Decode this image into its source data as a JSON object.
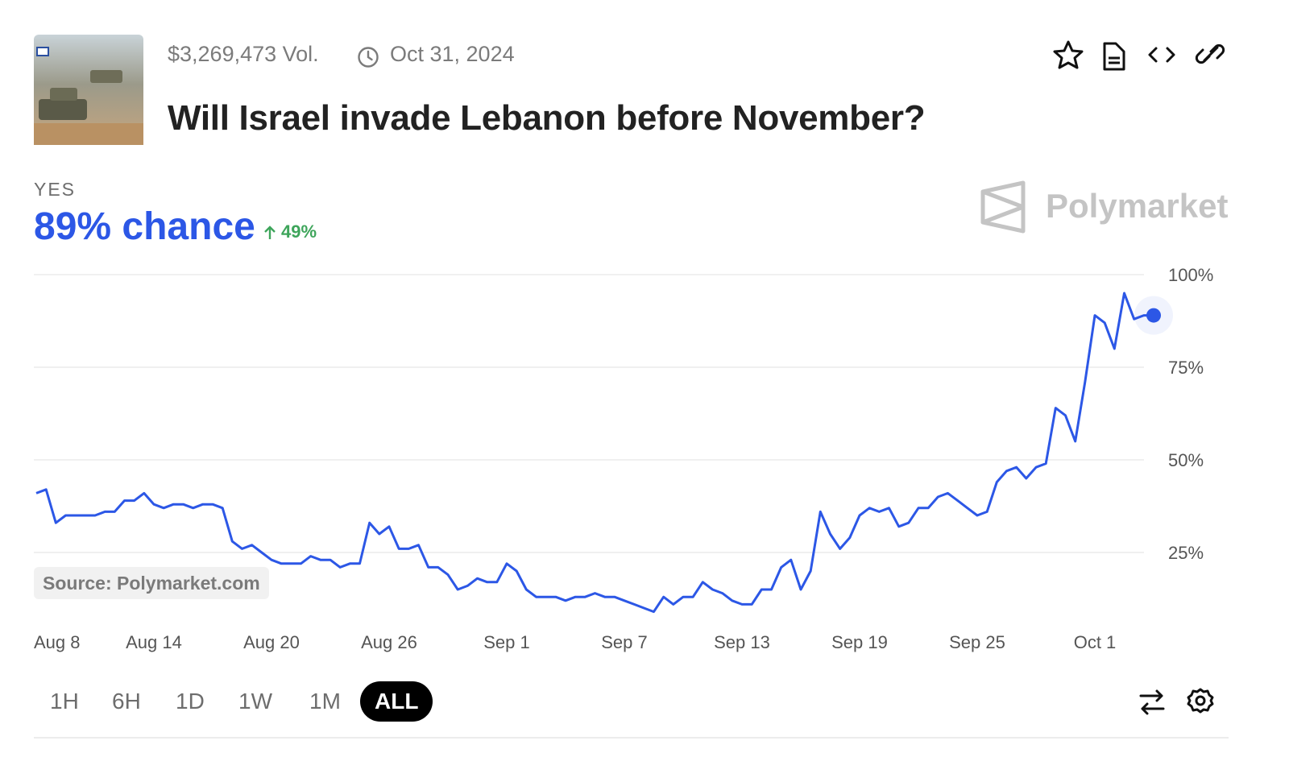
{
  "header": {
    "volume": "$3,269,473 Vol.",
    "end_date": "Oct 31, 2024",
    "title": "Will Israel invade Lebanon before November?"
  },
  "outcome": {
    "label": "YES",
    "chance": "89% chance",
    "change": "49%"
  },
  "brand": "Polymarket",
  "source": "Source: Polymarket.com",
  "ranges": [
    "1H",
    "6H",
    "1D",
    "1W",
    "1M",
    "ALL"
  ],
  "chart_data": {
    "type": "line",
    "x": [
      0,
      0.5,
      1,
      1.5,
      2,
      2.5,
      3,
      3.5,
      4,
      4.5,
      5,
      5.5,
      6,
      6.5,
      7,
      7.5,
      8,
      8.5,
      9,
      9.5,
      10,
      10.5,
      11,
      11.5,
      12,
      12.5,
      13,
      13.5,
      14,
      14.5,
      15,
      15.5,
      16,
      16.5,
      17,
      17.5,
      18,
      18.5,
      19,
      19.5,
      20,
      20.5,
      21,
      21.5,
      22,
      22.5,
      23,
      23.5,
      24,
      24.5,
      25,
      25.5,
      26,
      26.5,
      27,
      27.5,
      28,
      28.5,
      29,
      29.5,
      30,
      30.5,
      31,
      31.5,
      32,
      32.5,
      33,
      33.5,
      34,
      34.5,
      35,
      35.5,
      36,
      36.5,
      37,
      37.5,
      38,
      38.5,
      39,
      39.5,
      40,
      40.5,
      41,
      41.5,
      42,
      42.5,
      43,
      43.5,
      44,
      44.5,
      45,
      45.5,
      46,
      46.5,
      47,
      47.5,
      48,
      48.5,
      49,
      49.5,
      50,
      50.5,
      51,
      51.5,
      52,
      52.5,
      53,
      53.5,
      54,
      54.5,
      55,
      55.5,
      56,
      56.5,
      57
    ],
    "series": [
      {
        "name": "YES",
        "color": "#2c57e6",
        "values": [
          41,
          42,
          33,
          35,
          35,
          35,
          35,
          36,
          36,
          39,
          39,
          41,
          38,
          37,
          38,
          38,
          37,
          38,
          38,
          37,
          28,
          26,
          27,
          25,
          23,
          22,
          22,
          22,
          24,
          23,
          23,
          21,
          22,
          22,
          33,
          30,
          32,
          26,
          26,
          27,
          21,
          21,
          19,
          15,
          16,
          18,
          17,
          17,
          22,
          20,
          15,
          13,
          13,
          13,
          12,
          13,
          13,
          14,
          13,
          13,
          12,
          11,
          10,
          9,
          13,
          11,
          13,
          13,
          17,
          15,
          14,
          12,
          11,
          11,
          15,
          15,
          21,
          23,
          15,
          20,
          36,
          30,
          26,
          29,
          35,
          37,
          36,
          37,
          32,
          33,
          37,
          37,
          40,
          41,
          39,
          37,
          35,
          36,
          44,
          47,
          48,
          45,
          48,
          49,
          64,
          62,
          55,
          71,
          89,
          87,
          80,
          95,
          88,
          89,
          89
        ]
      }
    ],
    "xlim": [
      0,
      57
    ],
    "xticks": [
      {
        "value": 0,
        "label": "Aug 8"
      },
      {
        "value": 6,
        "label": "Aug 14"
      },
      {
        "value": 12,
        "label": "Aug 20"
      },
      {
        "value": 18,
        "label": "Aug 26"
      },
      {
        "value": 24,
        "label": "Sep 1"
      },
      {
        "value": 30,
        "label": "Sep 7"
      },
      {
        "value": 36,
        "label": "Sep 13"
      },
      {
        "value": 42,
        "label": "Sep 19"
      },
      {
        "value": 48,
        "label": "Sep 25"
      },
      {
        "value": 54,
        "label": "Oct 1"
      }
    ],
    "ylim": [
      0,
      100
    ],
    "yticks": [
      {
        "value": 25,
        "label": "25%"
      },
      {
        "value": 50,
        "label": "50%"
      },
      {
        "value": 75,
        "label": "75%"
      },
      {
        "value": 100,
        "label": "100%"
      }
    ],
    "grid": true
  }
}
